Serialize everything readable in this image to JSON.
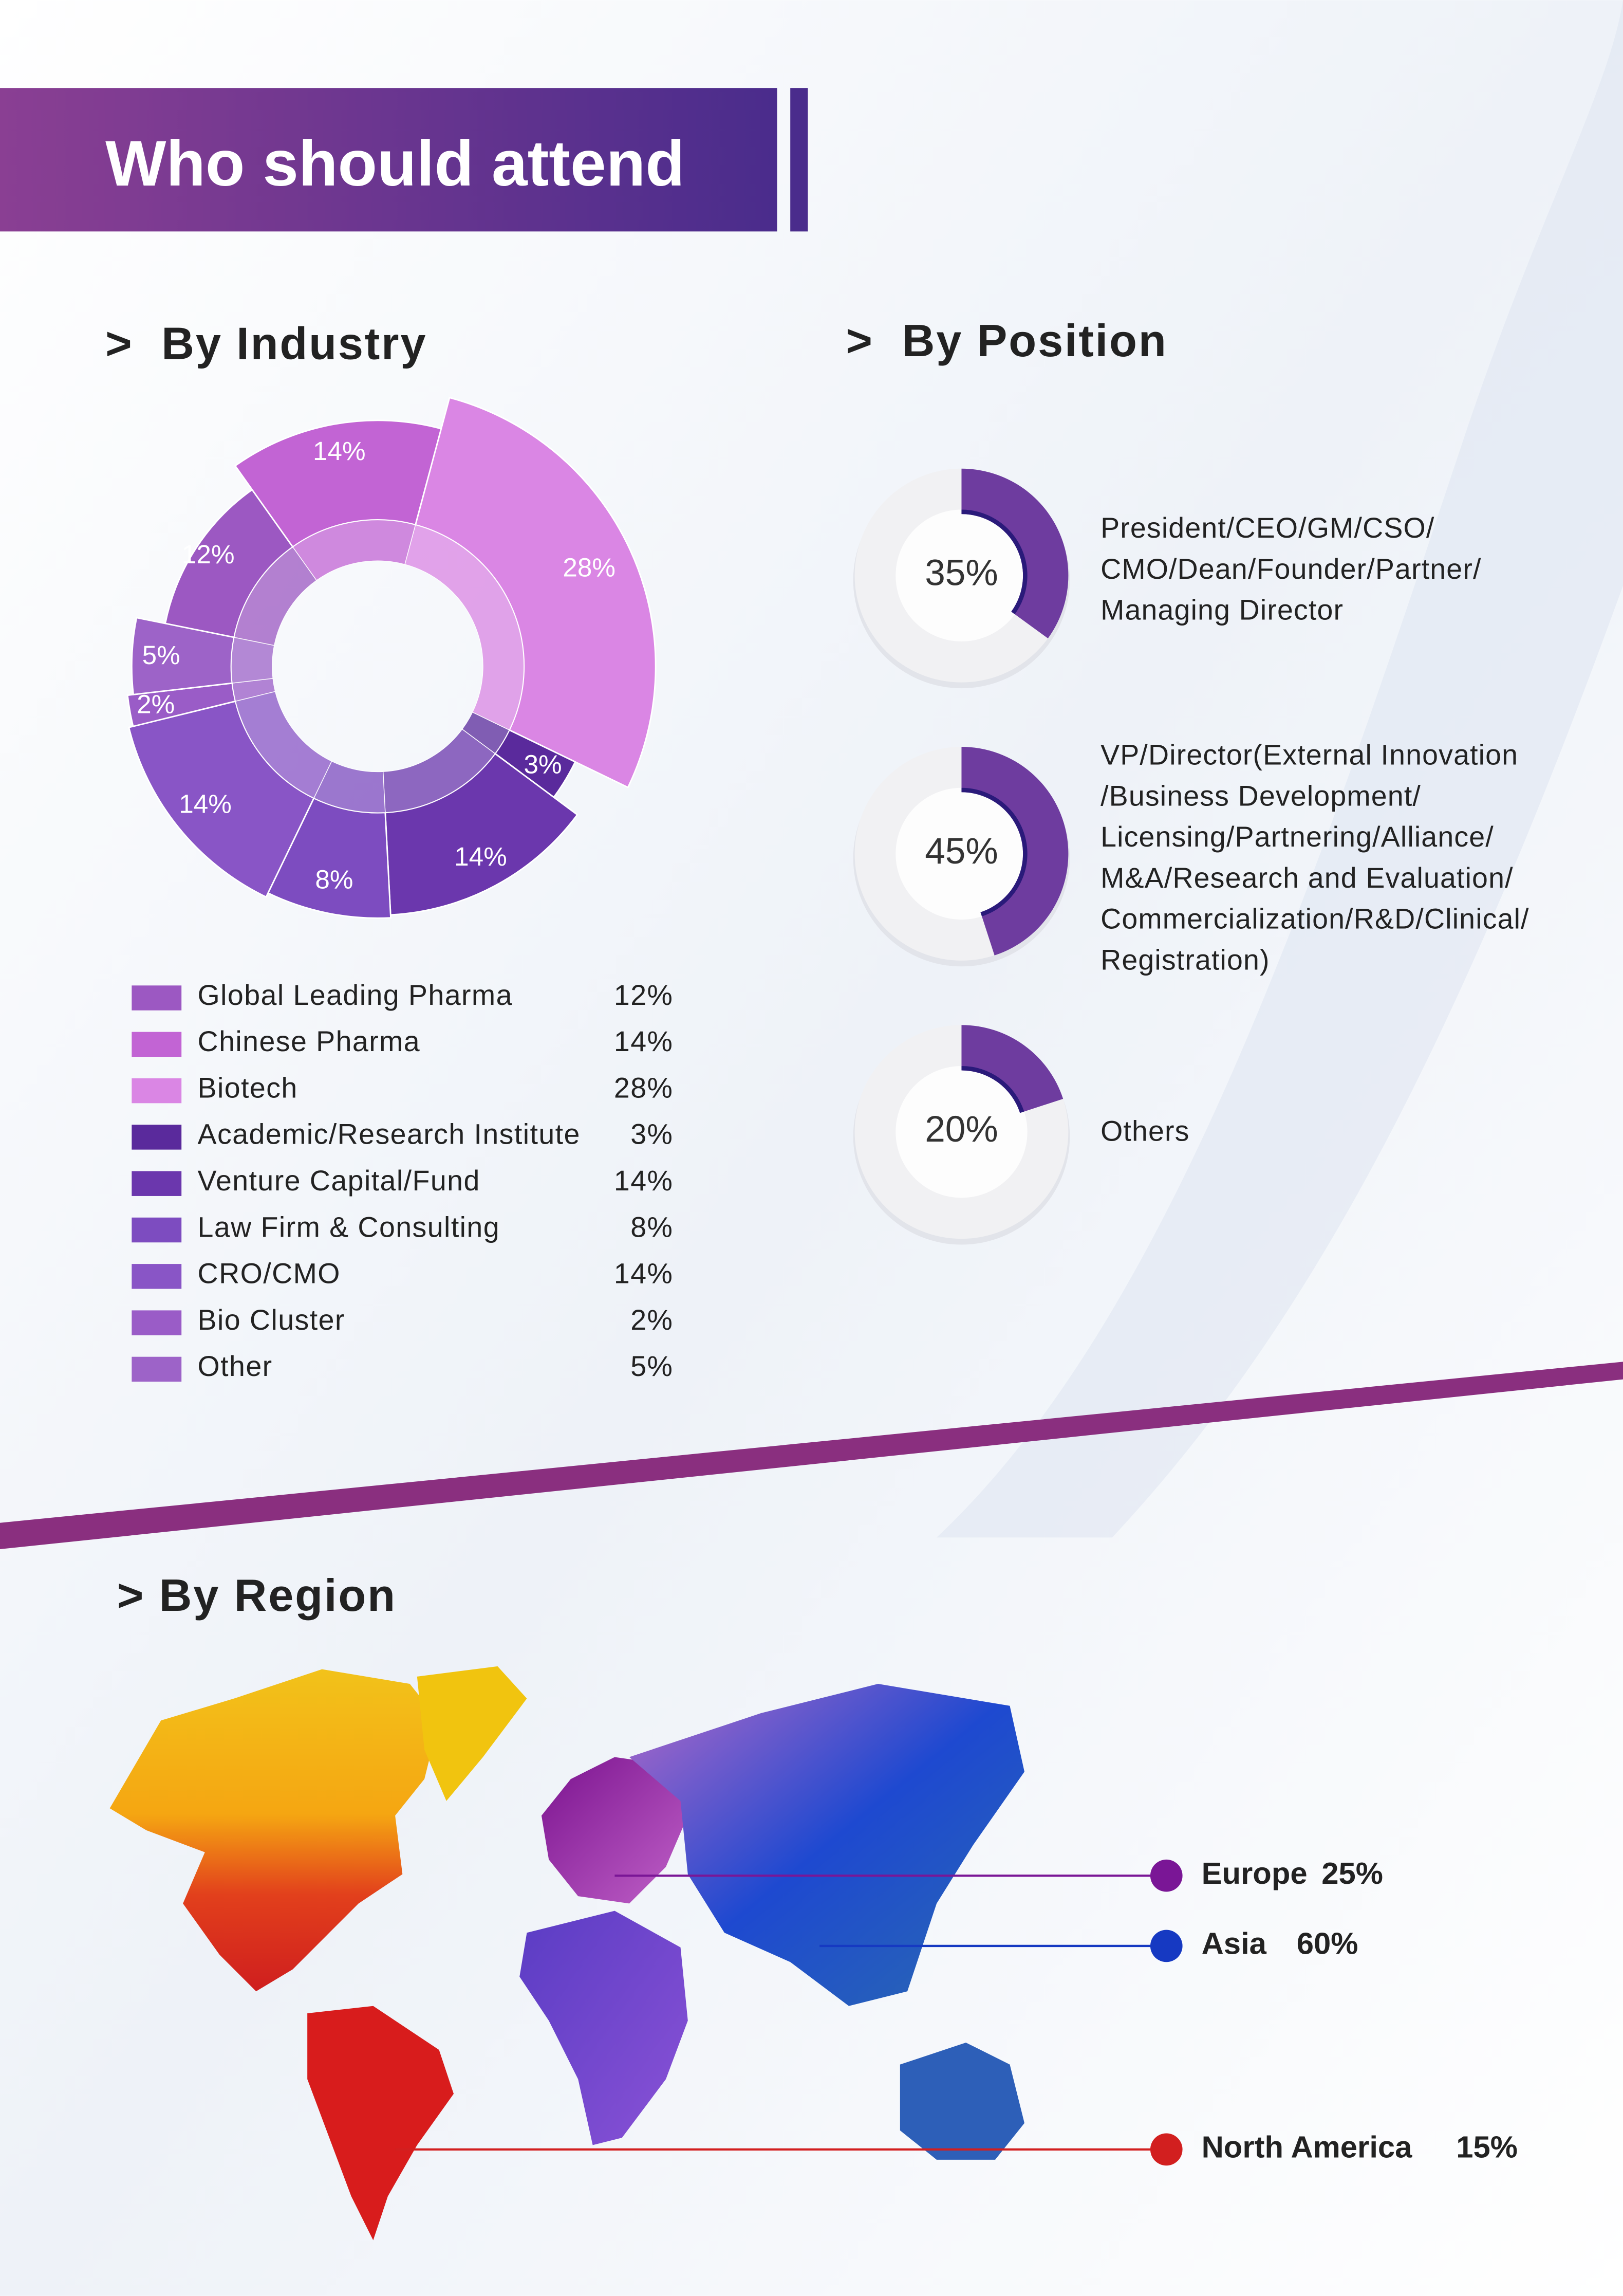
{
  "header": {
    "title": "Who should attend"
  },
  "chart_data": [
    {
      "type": "sunburst",
      "title": ">  By Industry",
      "categories": [
        "Global Leading Pharma",
        "Chinese Pharma",
        "Biotech",
        "Academic/Research Institute",
        "Venture Capital/Fund",
        "Law Firm & Consulting",
        "CRO/CMO",
        "Bio Cluster",
        "Other"
      ],
      "values": [
        12,
        14,
        28,
        3,
        14,
        8,
        14,
        2,
        5
      ],
      "value_labels": [
        "12%",
        "14%",
        "28%",
        "3%",
        "14%",
        "8%",
        "14%",
        "2%",
        "5%"
      ],
      "colors": [
        "#9c58c2",
        "#c264d4",
        "#da86e4",
        "#5a2a9c",
        "#6b37ad",
        "#7d4cc0",
        "#8955c6",
        "#9a5cc7",
        "#9d63c8"
      ]
    },
    {
      "type": "donut",
      "title": ">  By Position",
      "categories": [
        [
          "President/CEO/GM/CSO/",
          "CMO/Dean/Founder/Partner/",
          "Managing Director"
        ],
        [
          "VP/Director(External Innovation",
          "/Business Development/",
          "Licensing/Partnering/Alliance/",
          "M&A/Research and Evaluation/",
          "Commercialization/R&D/Clinical/",
          "Registration)"
        ],
        [
          "Others"
        ]
      ],
      "values": [
        35,
        45,
        20
      ],
      "value_labels": [
        "35%",
        "45%",
        "20%"
      ],
      "color": "#6e3c9f"
    },
    {
      "type": "map",
      "title": "> By Region",
      "categories": [
        "Europe",
        "Asia",
        "North America"
      ],
      "values": [
        25,
        60,
        15
      ],
      "value_labels": [
        "25%",
        "60%",
        "15%"
      ],
      "colors": [
        "#7a1696",
        "#1639c2",
        "#d21f1f"
      ]
    }
  ]
}
